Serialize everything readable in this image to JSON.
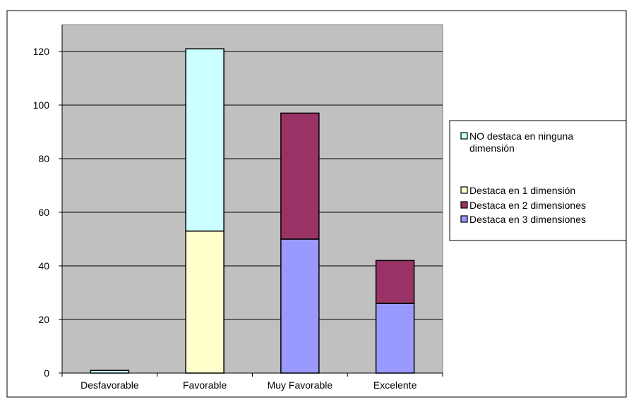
{
  "chart_data": {
    "type": "bar",
    "stacked": true,
    "title": "",
    "xlabel": "",
    "ylabel": "",
    "categories": [
      "Desfavorable",
      "Favorable",
      "Muy Favorable",
      "Excelente"
    ],
    "ylim": [
      0,
      130
    ],
    "yticks": [
      0,
      20,
      40,
      60,
      80,
      100,
      120
    ],
    "grid": true,
    "legend_position": "right",
    "series": [
      {
        "name": "Destaca en 3 dimensiones",
        "color": "#9999ff",
        "values": [
          0,
          0,
          50,
          26
        ]
      },
      {
        "name": "Destaca en 2 dimensiones",
        "color": "#993366",
        "values": [
          0,
          0,
          47,
          16
        ]
      },
      {
        "name": "Destaca en 1 dimensión",
        "color": "#ffffcc",
        "values": [
          0,
          53,
          0,
          0
        ]
      },
      {
        "name": "NO destaca en ninguna dimensión",
        "color": "#ccffff",
        "values": [
          1,
          68,
          0,
          0
        ]
      }
    ],
    "legend_order": [
      {
        "name_lines": [
          "NO destaca en ninguna",
          "dimensión"
        ],
        "color": "#ccffff"
      },
      {
        "name_lines": [
          "Destaca en 1 dimensión"
        ],
        "color": "#ffffcc"
      },
      {
        "name_lines": [
          "Destaca en 2 dimensiones"
        ],
        "color": "#993366"
      },
      {
        "name_lines": [
          "Destaca en 3 dimensiones"
        ],
        "color": "#9999ff"
      }
    ],
    "plot_background": "#c0c0c0"
  }
}
